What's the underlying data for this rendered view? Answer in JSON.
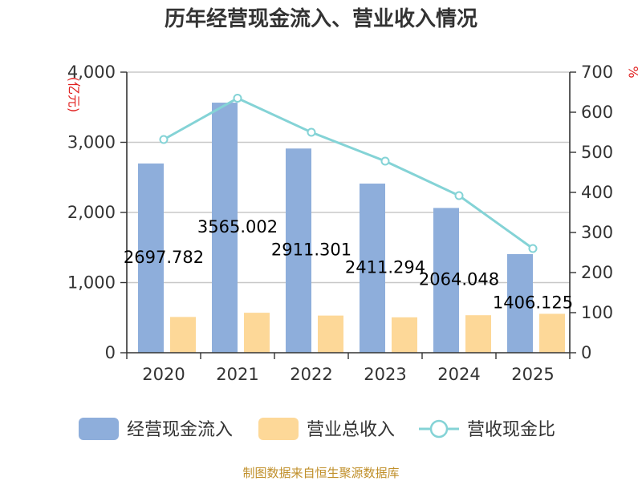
{
  "chart_data": {
    "type": "bar",
    "title": "历年经营现金流入、营业收入情况",
    "categories": [
      "2020",
      "2021",
      "2022",
      "2023",
      "2024",
      "2025"
    ],
    "left_axis": {
      "unit": "(亿元)",
      "ylim": [
        0,
        4000
      ],
      "ticks": [
        0,
        1000,
        2000,
        3000,
        4000
      ],
      "tick_labels": [
        "0",
        "1,000",
        "2,000",
        "3,000",
        "4,000"
      ]
    },
    "right_axis": {
      "unit": "%",
      "ylim": [
        0,
        700
      ],
      "ticks": [
        0,
        100,
        200,
        300,
        400,
        500,
        600,
        700
      ],
      "tick_labels": [
        "0",
        "100",
        "200",
        "300",
        "400",
        "500",
        "600",
        "700"
      ]
    },
    "series": [
      {
        "name": "经营现金流入",
        "kind": "bar",
        "axis": "left",
        "color": "#8eaedb",
        "values": [
          2697.782,
          3565.002,
          2911.301,
          2411.294,
          2064.048,
          1406.125
        ],
        "labels": [
          "2697.782",
          "3565.002",
          "2911.301",
          "2411.294",
          "2064.048",
          "1406.125"
        ]
      },
      {
        "name": "营业总收入",
        "kind": "bar",
        "axis": "left",
        "color": "#fdd898",
        "values": [
          510,
          570,
          530,
          505,
          535,
          555
        ]
      },
      {
        "name": "营收现金比",
        "kind": "line",
        "axis": "right",
        "color": "#84d3d6",
        "values": [
          532,
          635,
          550,
          478,
          392,
          260
        ]
      }
    ],
    "grid": true,
    "legend_position": "bottom"
  },
  "footer": {
    "source": "制图数据来自恒生聚源数据库"
  }
}
